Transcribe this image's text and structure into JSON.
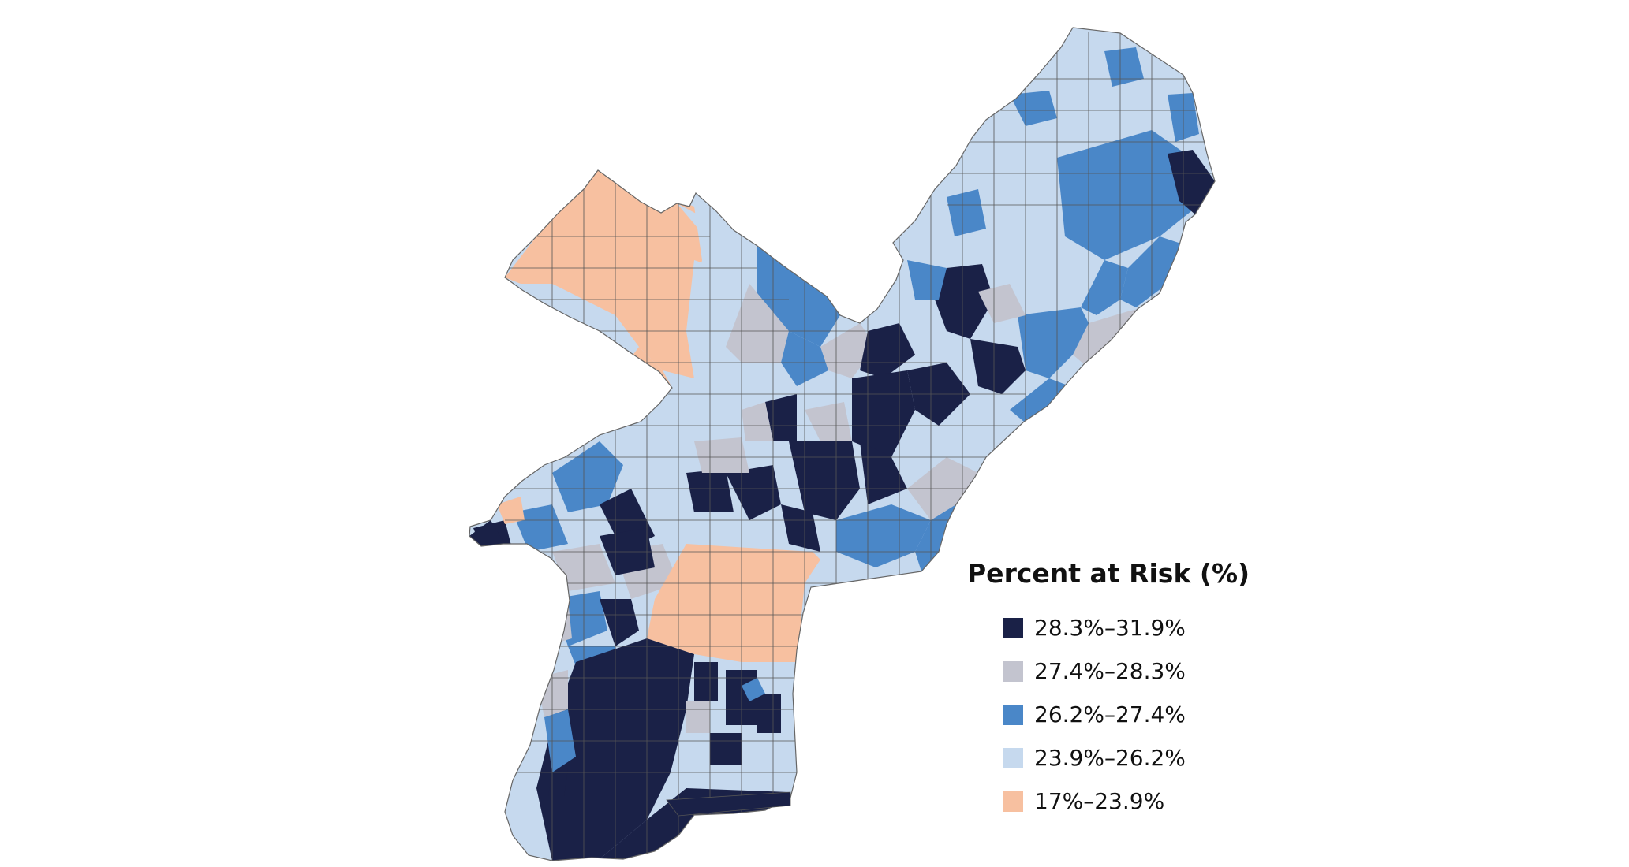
{
  "legend": {
    "title": "Percent at Risk (%)",
    "classes": [
      {
        "label": "28.3%–31.9%",
        "color": "#1a2147"
      },
      {
        "label": "27.4%–28.3%",
        "color": "#c3c4cf"
      },
      {
        "label": "26.2%–27.4%",
        "color": "#4a87c8"
      },
      {
        "label": "23.9%–26.2%",
        "color": "#c6d9ee"
      },
      {
        "label": "17%–23.9%",
        "color": "#f7c0a0"
      }
    ]
  },
  "map": {
    "outline_color": "#555555",
    "background": "#ffffff"
  }
}
